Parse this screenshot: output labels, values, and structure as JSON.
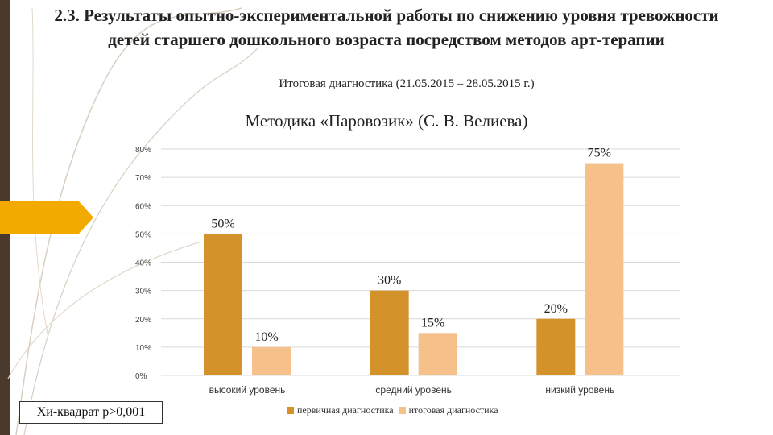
{
  "page": {
    "title": "2.3. Результаты опытно-экспериментальной работы по снижению уровня тревожности детей старшего дошкольного возраста посредством методов арт-терапии",
    "subtitle": "Итоговая диагностика (21.05.2015 – 28.05.2015 г.)",
    "note": "Хи-квадрат p>0,001"
  },
  "colors": {
    "accent": "#f2a900",
    "sidebar": "#4a3a2e",
    "series1": "#d4922a",
    "series2": "#f5c08a",
    "grid": "#d9d9d9"
  },
  "chart_data": {
    "type": "bar",
    "title": "Методика «Паровозик» (С. В. Велиева)",
    "categories": [
      "высокий уровень",
      "средний уровень",
      "низкий уровень"
    ],
    "series": [
      {
        "name": "первичная диагностика",
        "values": [
          50,
          30,
          20
        ],
        "labels": [
          "50%",
          "30%",
          "20%"
        ]
      },
      {
        "name": "итоговая диагностика",
        "values": [
          10,
          15,
          75
        ],
        "labels": [
          "10%",
          "15%",
          "75%"
        ]
      }
    ],
    "yticks": [
      "0%",
      "10%",
      "20%",
      "30%",
      "40%",
      "50%",
      "60%",
      "70%",
      "80%"
    ],
    "ylim": [
      0,
      80
    ],
    "grid": true,
    "legend": "bottom"
  }
}
